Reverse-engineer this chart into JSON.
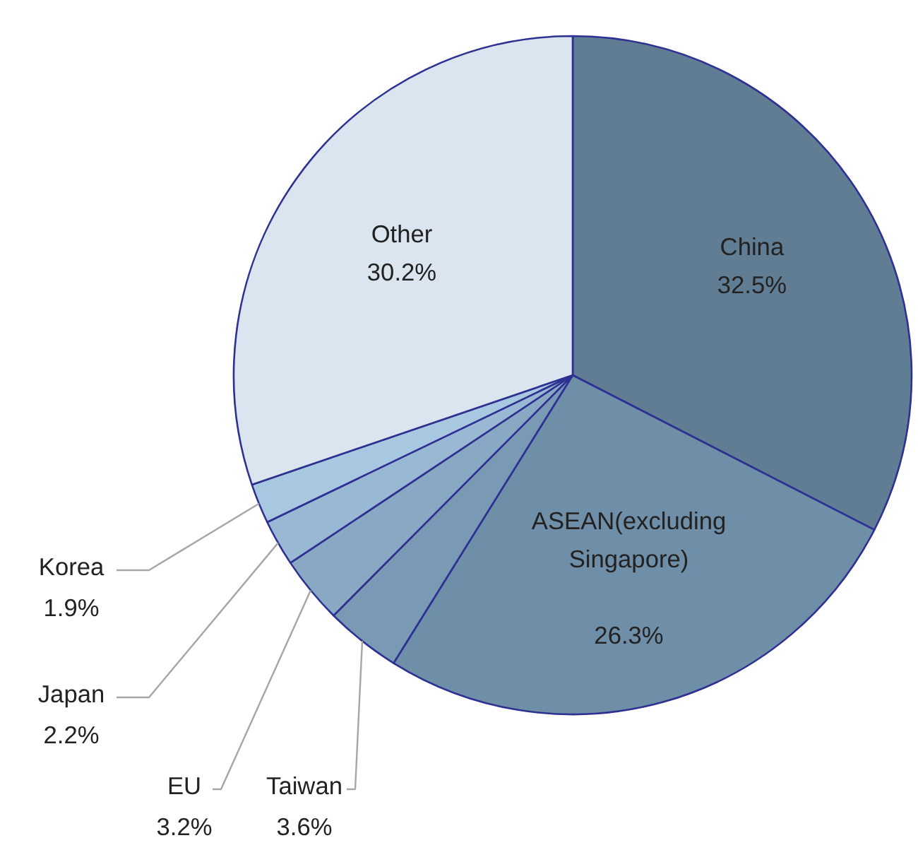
{
  "chart_data": {
    "type": "pie",
    "categories": [
      "China",
      "ASEAN(excluding Singapore)",
      "Taiwan",
      "EU",
      "Japan",
      "Korea",
      "Other"
    ],
    "values": [
      32.5,
      26.3,
      3.6,
      3.2,
      2.2,
      1.9,
      30.2
    ],
    "value_labels": [
      "32.5%",
      "26.3%",
      "3.6%",
      "3.2%",
      "2.2%",
      "1.9%",
      "30.2%"
    ],
    "colors": [
      "#607d94",
      "#6f8fa8",
      "#7a99b4",
      "#88a8c4",
      "#98b8d3",
      "#a8c8e2",
      "#dae5f0"
    ]
  }
}
